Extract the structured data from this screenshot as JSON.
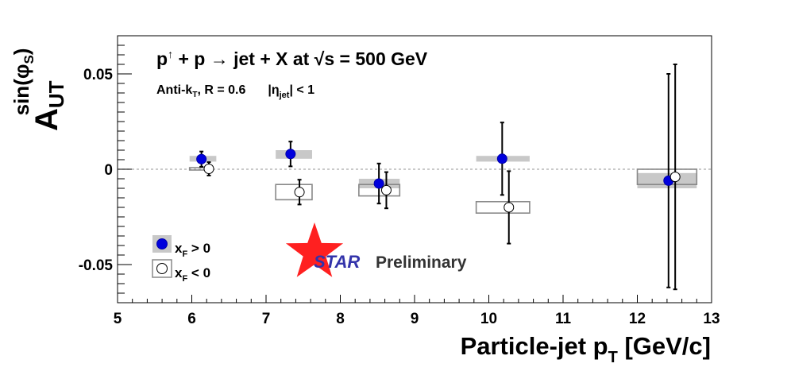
{
  "chart_data": {
    "type": "scatter",
    "title": "p↑ + p → jet + X at √s = 500 GeV",
    "title_parts": {
      "lhs_p": "p",
      "arrow_up": "↑",
      "plus_p": " + p ",
      "arrow_right": "→",
      "rhs": " jet + X at ",
      "sqrt": "√",
      "s_term": "s = 500 GeV"
    },
    "subtitle": "Anti-kT, R = 0.6   |ηjet| < 1",
    "subtitle_parts": {
      "antik_a": "Anti-k",
      "antik_sub": "T",
      "antik_b": ", R = 0.6",
      "eta_a": "|η",
      "eta_sub": "jet",
      "eta_b": "| < 1"
    },
    "xlabel": "Particle-jet pT [GeV/c]",
    "xlabel_parts": {
      "main": "Particle-jet p",
      "sub": "T",
      "unit": " [GeV/c]"
    },
    "ylabel": "A_UT^sin(φS)",
    "ylabel_parts": {
      "base": "A",
      "sub": "UT",
      "sup": "sin(φ",
      "sup_sub": "S",
      "sup_close": ")"
    },
    "xlim": [
      5,
      13
    ],
    "ylim": [
      -0.07,
      0.07
    ],
    "x_ticks": [
      5,
      6,
      7,
      8,
      9,
      10,
      11,
      12,
      13
    ],
    "y_ticks": [
      {
        "value": 0.05,
        "label": "0.05"
      },
      {
        "value": 0,
        "label": "0"
      },
      {
        "value": -0.05,
        "label": "-0.05"
      }
    ],
    "zero_line": true,
    "grid": false,
    "legend_position": "bottom-left",
    "series": [
      {
        "name": "xF > 0",
        "legend": {
          "main": "x",
          "sub": "F",
          "rest": " > 0"
        },
        "marker": "filled-circle",
        "color": "#0000dd",
        "syst_color": "#c8c8c8",
        "points": [
          {
            "x": 6.13,
            "y": 0.0053,
            "err": 0.004,
            "syst_lo": 0.004,
            "syst_hi": 0.007,
            "sx_lo": 5.97,
            "sx_hi": 6.33
          },
          {
            "x": 7.33,
            "y": 0.008,
            "err": 0.0065,
            "syst_lo": 0.0055,
            "syst_hi": 0.01,
            "sx_lo": 7.13,
            "sx_hi": 7.62
          },
          {
            "x": 8.52,
            "y": -0.0075,
            "err": 0.0105,
            "syst_lo": -0.01,
            "syst_hi": -0.005,
            "sx_lo": 8.25,
            "sx_hi": 8.8
          },
          {
            "x": 10.18,
            "y": 0.0055,
            "err": 0.019,
            "syst_lo": 0.004,
            "syst_hi": 0.007,
            "sx_lo": 9.83,
            "sx_hi": 10.55
          },
          {
            "x": 12.42,
            "y": -0.006,
            "err": 0.056,
            "syst_lo": -0.01,
            "syst_hi": -0.002,
            "sx_lo": 12.0,
            "sx_hi": 12.8
          }
        ]
      },
      {
        "name": "xF < 0",
        "legend": {
          "main": "x",
          "sub": "F",
          "rest": " < 0"
        },
        "marker": "open-circle",
        "color": "#000000",
        "syst_color": "#888888",
        "points": [
          {
            "x": 6.23,
            "y": 0.0002,
            "err": 0.0035,
            "syst_lo": 0.0,
            "syst_hi": 0.0004,
            "sx_lo": 5.97,
            "sx_hi": 6.25
          },
          {
            "x": 7.45,
            "y": -0.012,
            "err": 0.0065,
            "syst_lo": -0.016,
            "syst_hi": -0.008,
            "sx_lo": 7.13,
            "sx_hi": 7.62
          },
          {
            "x": 8.62,
            "y": -0.011,
            "err": 0.0095,
            "syst_lo": -0.014,
            "syst_hi": -0.008,
            "sx_lo": 8.25,
            "sx_hi": 8.8
          },
          {
            "x": 10.27,
            "y": -0.02,
            "err": 0.019,
            "syst_lo": -0.023,
            "syst_hi": -0.017,
            "sx_lo": 9.83,
            "sx_hi": 10.55
          },
          {
            "x": 12.51,
            "y": -0.004,
            "err": 0.059,
            "syst_lo": -0.008,
            "syst_hi": 0.0,
            "sx_lo": 12.0,
            "sx_hi": 12.8
          }
        ]
      }
    ]
  },
  "watermark": {
    "star_text": "STAR",
    "preliminary_text": "Preliminary",
    "star_color": "#ff2020",
    "star_text_color": "#3333aa"
  }
}
